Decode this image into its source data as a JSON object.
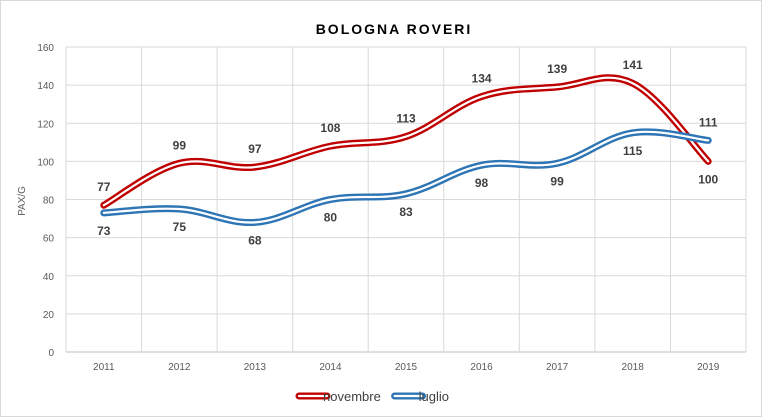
{
  "chart_data": {
    "type": "line",
    "title": "BOLOGNA ROVERI",
    "ylabel": "PAX/G",
    "xlabel": "",
    "categories": [
      "2011",
      "2012",
      "2013",
      "2014",
      "2015",
      "2016",
      "2017",
      "2018",
      "2019"
    ],
    "ylim": [
      0,
      160
    ],
    "yticks": [
      0,
      20,
      40,
      60,
      80,
      100,
      120,
      140,
      160
    ],
    "grid": true,
    "legend_position": "bottom",
    "series": [
      {
        "name": "novembre",
        "color": "#c00000",
        "values": [
          77,
          99,
          97,
          108,
          113,
          134,
          139,
          141,
          100
        ]
      },
      {
        "name": "luglio",
        "color": "#2e75b6",
        "values": [
          73,
          75,
          68,
          80,
          83,
          98,
          99,
          115,
          111
        ]
      }
    ]
  }
}
